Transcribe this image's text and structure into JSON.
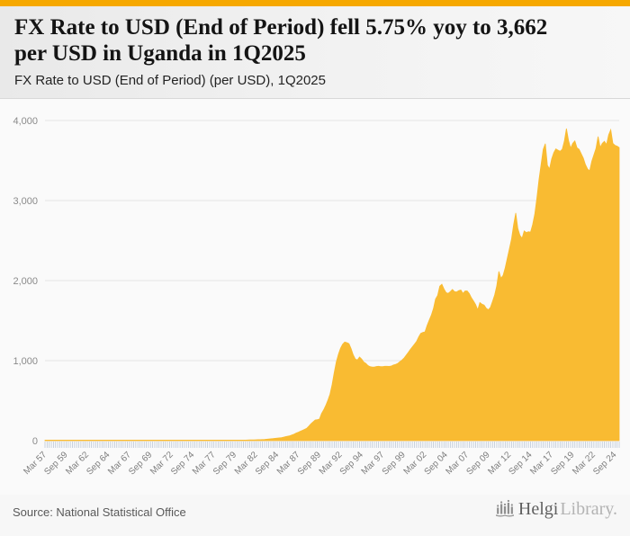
{
  "page": {
    "accent_bar_color": "#F6A800",
    "background": "#f7f7f7",
    "plot_background": "#fafafa"
  },
  "header": {
    "title_line1": "FX Rate to USD (End of Period) fell 5.75% yoy to 3,662",
    "title_line2": "per USD in Uganda in 1Q2025",
    "subtitle": "FX Rate to USD (End of Period) (per USD), 1Q2025"
  },
  "footer": {
    "source": "Source: National Statistical Office",
    "brand_primary": "Helgi",
    "brand_secondary": "Library.",
    "logo_icon": "bar-chart-icon"
  },
  "chart_data": {
    "type": "area",
    "title": "FX Rate to USD (End of Period) fell 5.75% yoy to 3,662 per USD in Uganda in 1Q2025",
    "subtitle": "FX Rate to USD (End of Period) (per USD), 1Q2025",
    "series_name": "FX Rate to USD (End of Period), UGX per USD, quarterly",
    "country": "Uganda",
    "latest_value": 3662,
    "yoy_change_pct": -5.75,
    "fill_color": "#F9BB32",
    "grid": true,
    "legend": "none",
    "ylim": [
      0,
      4000
    ],
    "yticks": [
      {
        "value": 4000,
        "label": "4,000"
      },
      {
        "value": 3000,
        "label": "3,000"
      },
      {
        "value": 2000,
        "label": "2,000"
      },
      {
        "value": 1000,
        "label": "1,000"
      },
      {
        "value": 0,
        "label": "0"
      }
    ],
    "x_frequency": "quarterly",
    "x_start": "Mar 1957",
    "x_end": "Mar 2025",
    "x_label_step": 10,
    "x_labels": [
      "Mar 57",
      "Sep 59",
      "Mar 62",
      "Sep 64",
      "Mar 67",
      "Sep 69",
      "Mar 72",
      "Sep 74",
      "Mar 77",
      "Sep 79",
      "Mar 82",
      "Sep 84",
      "Mar 87",
      "Sep 89",
      "Mar 92",
      "Sep 94",
      "Mar 97",
      "Sep 99",
      "Mar 02",
      "Sep 04",
      "Mar 07",
      "Sep 09",
      "Mar 12",
      "Sep 14",
      "Mar 17",
      "Sep 19",
      "Mar 22",
      "Sep 24"
    ],
    "values": [
      7,
      7,
      7,
      7,
      7,
      7,
      7,
      7,
      7,
      7,
      7,
      7,
      7,
      7,
      7,
      7,
      7,
      7,
      7,
      7,
      7,
      7,
      7,
      7,
      7,
      7,
      7,
      7,
      7,
      7,
      7,
      7,
      7,
      7,
      7,
      7,
      7,
      7,
      7,
      7,
      7,
      7,
      7,
      7,
      7,
      7,
      7,
      7,
      7,
      7,
      7,
      7,
      7,
      7,
      7,
      7,
      7,
      7,
      7,
      7,
      7,
      7,
      7,
      7,
      7,
      7,
      7,
      7,
      7,
      7,
      7,
      7,
      7,
      7,
      7,
      7,
      7,
      7,
      7,
      7,
      7,
      7,
      7,
      7,
      7,
      7,
      7,
      7,
      7,
      7,
      7,
      7,
      7,
      7,
      7,
      7,
      8,
      9,
      9,
      10,
      11,
      12,
      13,
      14,
      15,
      18,
      21,
      24,
      26,
      29,
      32,
      35,
      38,
      44,
      50,
      56,
      62,
      72,
      82,
      95,
      105,
      118,
      130,
      142,
      155,
      182,
      212,
      235,
      258,
      262,
      270,
      340,
      385,
      440,
      505,
      580,
      700,
      850,
      985,
      1080,
      1155,
      1205,
      1232,
      1225,
      1212,
      1150,
      1072,
      1020,
      1008,
      1045,
      1020,
      982,
      965,
      938,
      925,
      920,
      920,
      927,
      930,
      926,
      925,
      929,
      930,
      928,
      932,
      945,
      952,
      963,
      985,
      1005,
      1030,
      1065,
      1100,
      1138,
      1172,
      1205,
      1240,
      1295,
      1340,
      1352,
      1360,
      1440,
      1505,
      1568,
      1650,
      1770,
      1815,
      1930,
      1955,
      1895,
      1850,
      1840,
      1862,
      1890,
      1862,
      1858,
      1875,
      1882,
      1840,
      1870,
      1870,
      1838,
      1785,
      1745,
      1700,
      1635,
      1725,
      1705,
      1695,
      1655,
      1635,
      1665,
      1740,
      1820,
      1935,
      2115,
      2030,
      2065,
      2160,
      2280,
      2400,
      2520,
      2700,
      2845,
      2650,
      2565,
      2530,
      2620,
      2600,
      2610,
      2605,
      2700,
      2830,
      3030,
      3260,
      3450,
      3640,
      3710,
      3440,
      3395,
      3520,
      3598,
      3645,
      3630,
      3615,
      3640,
      3740,
      3900,
      3750,
      3655,
      3715,
      3745,
      3660,
      3640,
      3585,
      3530,
      3450,
      3395,
      3370,
      3490,
      3570,
      3650,
      3800,
      3665,
      3715,
      3740,
      3700,
      3820,
      3885,
      3715,
      3690,
      3680,
      3662
    ],
    "style": {
      "gridline_color": "#e4e4e4",
      "zeroline_color": "#d0d0d0",
      "ytick_label_color": "#8a8a8a",
      "xtick_label_color": "#7d7d7d",
      "tick_mark_color": "#bcc7d6"
    }
  }
}
